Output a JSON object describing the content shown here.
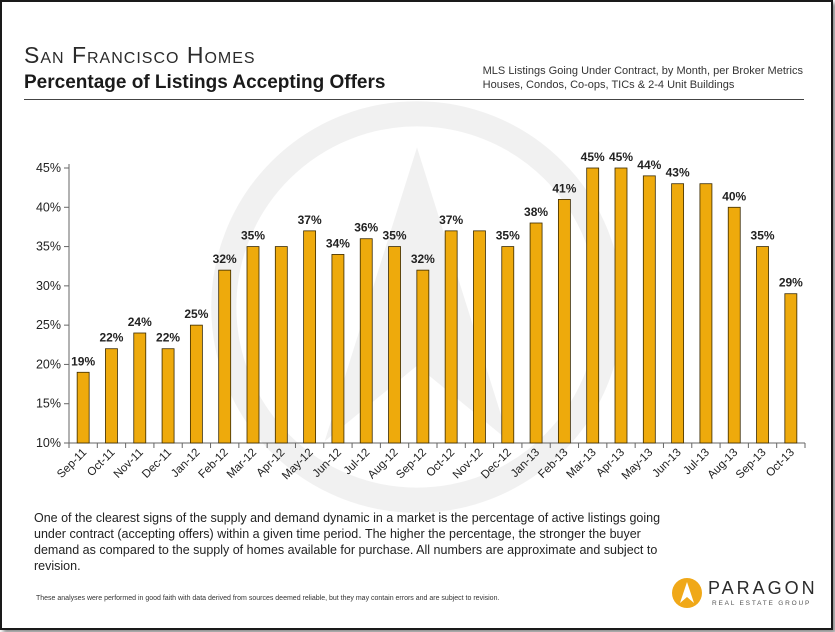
{
  "header": {
    "title": "San Francisco Homes",
    "subtitle": "Percentage of Listings Accepting Offers",
    "source_line1": "MLS Listings Going Under Contract, by Month, per Broker Metrics",
    "source_line2": "Houses, Condos, Co-ops, TICs & 2-4 Unit Buildings"
  },
  "description": "One of the clearest signs of the supply and demand dynamic in a market is the percentage of active listings going under contract (accepting offers) within a given time period. The higher the percentage, the stronger the buyer demand as compared to the supply of homes available for purchase. All numbers are approximate and subject to revision.",
  "disclaimer": "These analyses were performed in good faith with data derived from sources deemed reliable, but they may contain errors and are subject to revision.",
  "logo": {
    "name": "PARAGON",
    "tagline": "REAL ESTATE GROUP"
  },
  "colors": {
    "bar": "#eeaa0c",
    "bar_edge": "#3a2a00",
    "axis": "#666666",
    "text": "#222222"
  },
  "chart_data": {
    "type": "bar",
    "title": "Percentage of Listings Accepting Offers",
    "categories": [
      "Sep-11",
      "Oct-11",
      "Nov-11",
      "Dec-11",
      "Jan-12",
      "Feb-12",
      "Mar-12",
      "Apr-12",
      "May-12",
      "Jun-12",
      "Jul-12",
      "Aug-12",
      "Sep-12",
      "Oct-12",
      "Nov-12",
      "Dec-12",
      "Jan-13",
      "Feb-13",
      "Mar-13",
      "Apr-13",
      "May-13",
      "Jun-13",
      "Jul-13",
      "Aug-13",
      "Sep-13",
      "Oct-13"
    ],
    "values": [
      19,
      22,
      24,
      22,
      25,
      32,
      35,
      35,
      37,
      34,
      36,
      35,
      32,
      37,
      37,
      35,
      38,
      41,
      45,
      45,
      44,
      43,
      43,
      40,
      35,
      29
    ],
    "data_labels": [
      "19%",
      "22%",
      "24%",
      "22%",
      "25%",
      "32%",
      "35%",
      "",
      "37%",
      "34%",
      "36%",
      "35%",
      "32%",
      "37%",
      "",
      "35%",
      "38%",
      "41%",
      "45%",
      "45%",
      "44%",
      "43%",
      "",
      "40%",
      "35%",
      "29%"
    ],
    "ylim": [
      10,
      45
    ],
    "yticks": [
      "10%",
      "15%",
      "20%",
      "25%",
      "30%",
      "35%",
      "40%",
      "45%"
    ],
    "grid": false,
    "xlabel": "",
    "ylabel": ""
  }
}
